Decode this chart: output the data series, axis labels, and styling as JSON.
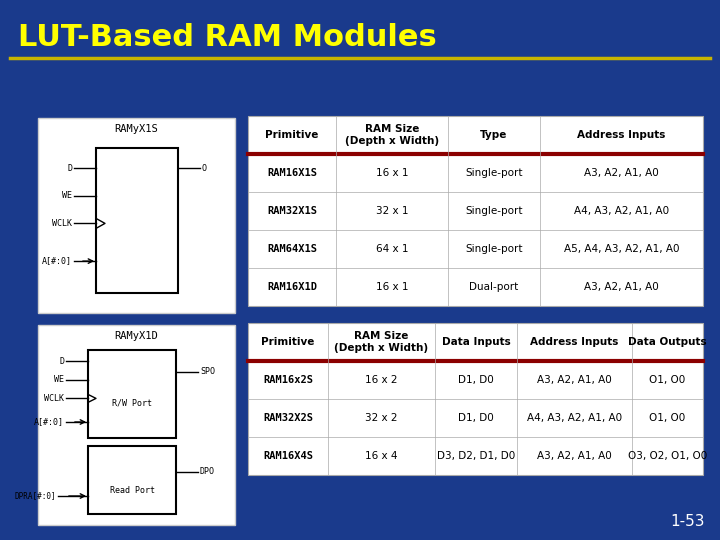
{
  "title": "LUT-Based RAM Modules",
  "slide_number": "1-53",
  "bg_color": "#1a3a8c",
  "title_color": "#ffff00",
  "title_underline_color": "#c8b400",
  "white_color": "#ffffff",
  "table1_header": [
    "Primitive",
    "RAM Size\n(Depth x Width)",
    "Type",
    "Address Inputs"
  ],
  "table1_rows": [
    [
      "RAM16X1S",
      "16 x 1",
      "Single-port",
      "A3, A2, A1, A0"
    ],
    [
      "RAM32X1S",
      "32 x 1",
      "Single-port",
      "A4, A3, A2, A1, A0"
    ],
    [
      "RAM64X1S",
      "64 x 1",
      "Single-port",
      "A5, A4, A3, A2, A1, A0"
    ],
    [
      "RAM16X1D",
      "16 x 1",
      "Dual-port",
      "A3, A2, A1, A0"
    ]
  ],
  "table2_header": [
    "Primitive",
    "RAM Size\n(Depth x Width)",
    "Data Inputs",
    "Address Inputs",
    "Data Outputs"
  ],
  "table2_rows": [
    [
      "RAM16x2S",
      "16 x 2",
      "D1, D0",
      "A3, A2, A1, A0",
      "O1, O0"
    ],
    [
      "RAM32X2S",
      "32 x 2",
      "D1, D0",
      "A4, A3, A2, A1, A0",
      "O1, O0"
    ],
    [
      "RAM16X4S",
      "16 x 4",
      "D3, D2, D1, D0",
      "A3, A2, A1, A0",
      "O3, O2, O1, O0"
    ]
  ],
  "header_row_color": "#8b0000",
  "diag1_title": "RAMyX1S",
  "diag2_title": "RAMyX1D",
  "table_border_color": "#aaaaaa",
  "table_line_color": "#aaaaaa"
}
